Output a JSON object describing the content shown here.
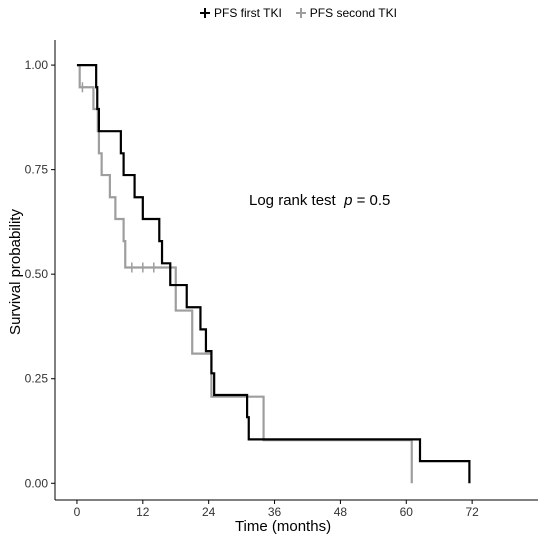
{
  "chart_data": {
    "type": "line",
    "title": "",
    "xlabel": "Time (months)",
    "ylabel": "Survival probability",
    "xlim": [
      -4,
      84
    ],
    "ylim": [
      -0.04,
      1.06
    ],
    "x_ticks": [
      0,
      12,
      24,
      36,
      48,
      60,
      72
    ],
    "y_ticks": [
      0.0,
      0.25,
      0.5,
      0.75,
      1.0
    ],
    "y_tick_labels": [
      "0.00",
      "0.25",
      "0.50",
      "0.75",
      "1.00"
    ],
    "grid": false,
    "legend_position": "top",
    "annotation": {
      "text": "Log rank test",
      "p_label": "p",
      "p_value": "= 0.5"
    },
    "series": [
      {
        "name": "PFS first TKI",
        "color": "#000000",
        "steps": [
          [
            0,
            1.0
          ],
          [
            3.5,
            0.947
          ],
          [
            3.7,
            0.895
          ],
          [
            4,
            0.842
          ],
          [
            8,
            0.789
          ],
          [
            8.5,
            0.737
          ],
          [
            10.5,
            0.684
          ],
          [
            12,
            0.632
          ],
          [
            15,
            0.579
          ],
          [
            15.5,
            0.526
          ],
          [
            17,
            0.474
          ],
          [
            20,
            0.421
          ],
          [
            22.5,
            0.368
          ],
          [
            23.5,
            0.316
          ],
          [
            24.5,
            0.263
          ],
          [
            25,
            0.211
          ],
          [
            31,
            0.158
          ],
          [
            31.3,
            0.105
          ],
          [
            62.5,
            0.053
          ],
          [
            71.5,
            0.0
          ]
        ],
        "end": 71.5,
        "censor_times": []
      },
      {
        "name": "PFS second TKI",
        "color": "#9e9e9e",
        "steps": [
          [
            0,
            1.0
          ],
          [
            0.5,
            0.947
          ],
          [
            3,
            0.895
          ],
          [
            3.8,
            0.842
          ],
          [
            4,
            0.789
          ],
          [
            4.5,
            0.737
          ],
          [
            6,
            0.684
          ],
          [
            7,
            0.632
          ],
          [
            8.5,
            0.579
          ],
          [
            8.8,
            0.516
          ],
          [
            18,
            0.413
          ],
          [
            21,
            0.31
          ],
          [
            24.5,
            0.207
          ],
          [
            34,
            0.103
          ],
          [
            61,
            0.0
          ]
        ],
        "end": 61,
        "censor_times": [
          1,
          10,
          12,
          14
        ]
      }
    ]
  }
}
